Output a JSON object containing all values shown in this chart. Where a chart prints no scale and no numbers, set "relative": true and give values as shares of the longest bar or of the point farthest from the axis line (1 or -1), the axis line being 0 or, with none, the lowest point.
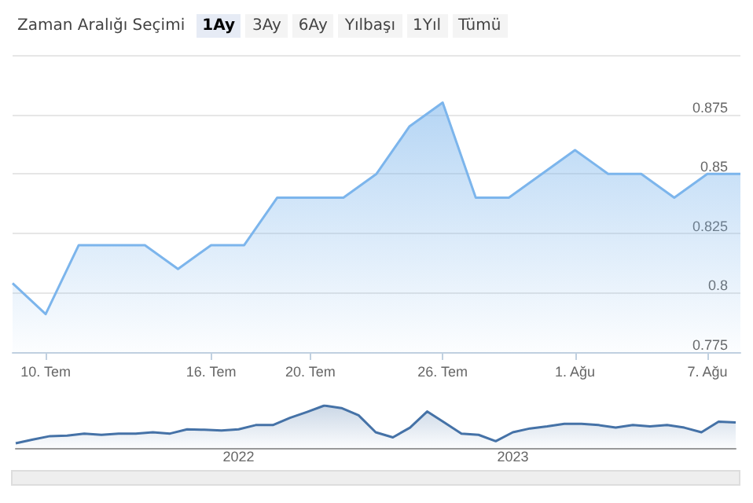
{
  "chart_data": [
    {
      "type": "area",
      "annotations": [
        "Zaman Aralığı Seçimi",
        "1Ay",
        "3Ay",
        "6Ay",
        "Yılbaşı",
        "1Yıl",
        "Tümü"
      ],
      "categories": [
        null,
        "10. Tem",
        null,
        null,
        null,
        null,
        "16. Tem",
        null,
        null,
        "20. Tem",
        null,
        null,
        null,
        "26. Tem",
        null,
        null,
        null,
        "1. Ağu",
        null,
        null,
        null,
        "7. Ağu",
        null
      ],
      "series": [
        {
          "color": "#7cb5ec",
          "values": [
            0.804,
            0.791,
            0.82,
            0.82,
            0.82,
            0.81,
            0.82,
            0.82,
            0.84,
            0.84,
            0.84,
            0.85,
            0.87,
            0.88,
            0.84,
            0.84,
            0.85,
            0.86,
            0.85,
            0.85,
            0.84,
            0.85,
            0.85
          ]
        }
      ],
      "ylim": [
        0.775,
        0.9
      ],
      "yticks": [
        0.775,
        0.8,
        0.825,
        0.85,
        0.875
      ],
      "grid": "y",
      "marker": "none"
    },
    {
      "type": "area",
      "relative": true,
      "tick_labels": "x",
      "categories": [
        null,
        null,
        null,
        null,
        null,
        null,
        null,
        null,
        null,
        null,
        null,
        null,
        null,
        "2022",
        null,
        null,
        null,
        null,
        null,
        null,
        null,
        null,
        null,
        null,
        null,
        null,
        null,
        null,
        null,
        "2023",
        null,
        null,
        null,
        null,
        null,
        null,
        null,
        null,
        null,
        null,
        null,
        null,
        null
      ],
      "series": [
        {
          "color": "#4572a7",
          "values": [
            0.11,
            0.2,
            0.28,
            0.29,
            0.34,
            0.31,
            0.34,
            0.34,
            0.37,
            0.34,
            0.44,
            0.43,
            0.41,
            0.44,
            0.54,
            0.54,
            0.71,
            0.85,
            1,
            0.94,
            0.77,
            0.37,
            0.25,
            0.48,
            0.86,
            0.6,
            0.34,
            0.31,
            0.16,
            0.37,
            0.46,
            0.51,
            0.57,
            0.57,
            0.54,
            0.48,
            0.54,
            0.51,
            0.54,
            0.48,
            0.37,
            0.62,
            0.6
          ]
        }
      ],
      "marker": "none"
    }
  ]
}
